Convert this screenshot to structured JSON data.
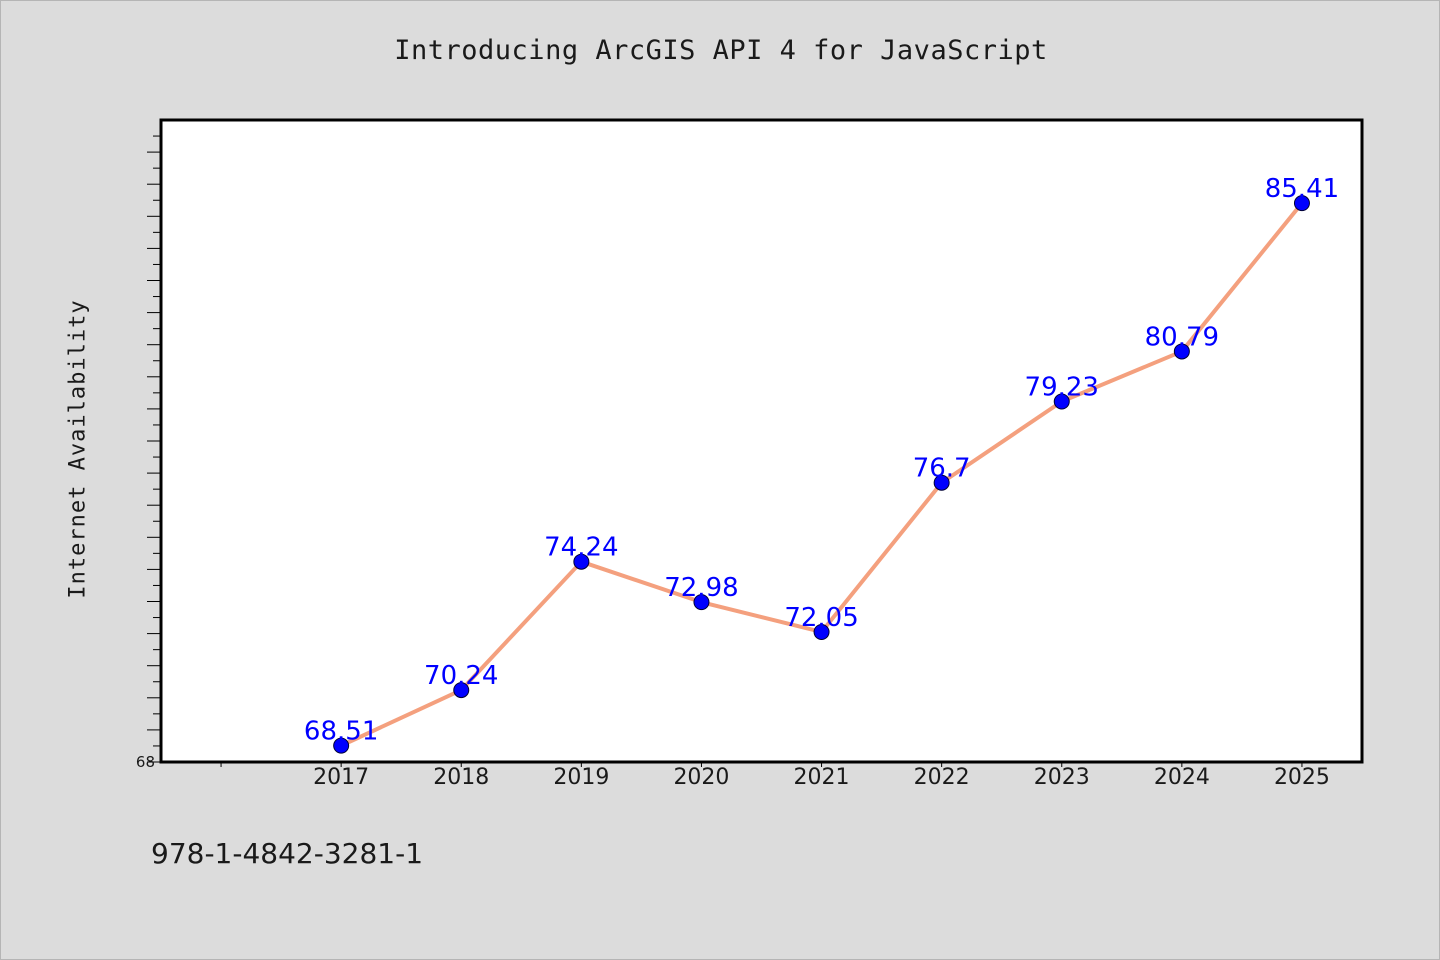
{
  "footer_text": "978-1-4842-3281-1",
  "colors": {
    "background": "#dcdcdc",
    "plot_background": "#ffffff",
    "line": "#f4a07e",
    "marker": "#0000ff",
    "label": "#0000ff"
  },
  "chart_data": {
    "type": "line",
    "title": "Introducing ArcGIS API 4 for JavaScript",
    "xlabel": "",
    "ylabel": "Internet Availability",
    "x": [
      "2017",
      "2018",
      "2019",
      "2020",
      "2021",
      "2022",
      "2023",
      "2024",
      "2025"
    ],
    "values": [
      68.51,
      70.24,
      74.24,
      72.98,
      72.05,
      76.7,
      79.23,
      80.79,
      85.41
    ],
    "data_labels": [
      "68.51",
      "70.24",
      "74.24",
      "72.98",
      "72.05",
      "76.7",
      "79.23",
      "80.79",
      "85.41"
    ],
    "y_tick_labels": [
      "68"
    ],
    "ylim": [
      68,
      88
    ],
    "xlim": [
      2015.5,
      2025.5
    ],
    "grid": false,
    "legend": "none"
  }
}
